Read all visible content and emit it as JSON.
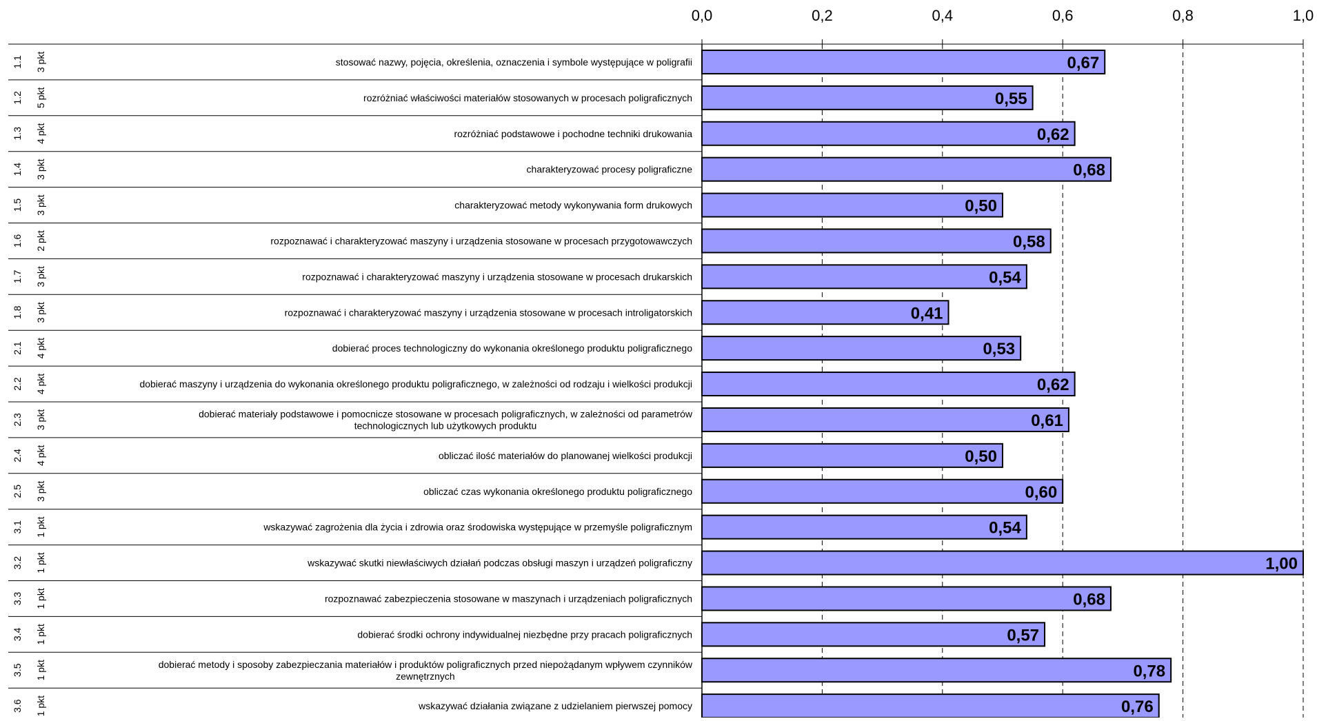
{
  "chart_data": {
    "type": "bar",
    "orientation": "horizontal",
    "title": "",
    "xlabel": "",
    "ylabel": "",
    "xlim": [
      0,
      1
    ],
    "ticks": [
      0,
      0.2,
      0.4,
      0.6,
      0.8,
      1.0
    ],
    "tick_labels": [
      "0,0",
      "0,2",
      "0,4",
      "0,6",
      "0,8",
      "1,0"
    ],
    "tick_position": "top",
    "grid": "vertical-dashed",
    "legend": "none",
    "bar_color": "#9999ff",
    "bar_edge_color": "#000000",
    "categories": [
      {
        "code": "1.1",
        "points": "3 pkt",
        "label": [
          "stosować nazwy, pojęcia, określenia, oznaczenia i symbole występujące w poligrafii"
        ],
        "value": 0.67,
        "value_label": "0,67"
      },
      {
        "code": "1.2",
        "points": "5 pkt",
        "label": [
          "rozróżniać właściwości materiałów stosowanych w procesach poligraficznych"
        ],
        "value": 0.55,
        "value_label": "0,55"
      },
      {
        "code": "1.3",
        "points": "4 pkt",
        "label": [
          "rozróżniać podstawowe i pochodne techniki drukowania"
        ],
        "value": 0.62,
        "value_label": "0,62"
      },
      {
        "code": "1.4",
        "points": "3 pkt",
        "label": [
          "charakteryzować procesy poligraficzne"
        ],
        "value": 0.68,
        "value_label": "0,68"
      },
      {
        "code": "1.5",
        "points": "3 pkt",
        "label": [
          "charakteryzować metody wykonywania form drukowych"
        ],
        "value": 0.5,
        "value_label": "0,50"
      },
      {
        "code": "1.6",
        "points": "2 pkt",
        "label": [
          "rozpoznawać i charakteryzować maszyny i urządzenia stosowane w procesach przygotowawczych"
        ],
        "value": 0.58,
        "value_label": "0,58"
      },
      {
        "code": "1.7",
        "points": "3 pkt",
        "label": [
          "rozpoznawać i charakteryzować maszyny i urządzenia stosowane w procesach drukarskich"
        ],
        "value": 0.54,
        "value_label": "0,54"
      },
      {
        "code": "1.8",
        "points": "3 pkt",
        "label": [
          "rozpoznawać i charakteryzować maszyny i urządzenia stosowane w procesach introligatorskich"
        ],
        "value": 0.41,
        "value_label": "0,41"
      },
      {
        "code": "2.1",
        "points": "4 pkt",
        "label": [
          "dobierać proces technologiczny do wykonania określonego produktu poligraficznego"
        ],
        "value": 0.53,
        "value_label": "0,53"
      },
      {
        "code": "2.2",
        "points": "4 pkt",
        "label": [
          "dobierać maszyny i urządzenia do wykonania określonego produktu poligraficznego, w zależności od rodzaju i wielkości produkcji"
        ],
        "value": 0.62,
        "value_label": "0,62"
      },
      {
        "code": "2.3",
        "points": "3 pkt",
        "label": [
          "dobierać materiały podstawowe i pomocnicze stosowane w procesach poligraficznych, w zależności od parametrów",
          "technologicznych lub użytkowych produktu"
        ],
        "value": 0.61,
        "value_label": "0,61"
      },
      {
        "code": "2.4",
        "points": "4 pkt",
        "label": [
          "obliczać ilość materiałów do planowanej wielkości produkcji"
        ],
        "value": 0.5,
        "value_label": "0,50"
      },
      {
        "code": "2.5",
        "points": "3 pkt",
        "label": [
          "obliczać czas wykonania określonego produktu poligraficznego"
        ],
        "value": 0.6,
        "value_label": "0,60"
      },
      {
        "code": "3.1",
        "points": "1 pkt",
        "label": [
          "wskazywać zagrożenia dla życia i zdrowia oraz środowiska występujące w  przemyśle poligraficznym"
        ],
        "value": 0.54,
        "value_label": "0,54"
      },
      {
        "code": "3.2",
        "points": "1 pkt",
        "label": [
          "wskazywać skutki niewłaściwych działań podczas obsługi maszyn i urządzeń poligraficzny"
        ],
        "value": 1.0,
        "value_label": "1,00"
      },
      {
        "code": "3.3",
        "points": "1 pkt",
        "label": [
          "rozpoznawać zabezpieczenia stosowane w maszynach i urządzeniach poligraficznych"
        ],
        "value": 0.68,
        "value_label": "0,68"
      },
      {
        "code": "3.4",
        "points": "1 pkt",
        "label": [
          "dobierać środki ochrony indywidualnej niezbędne przy pracach poligraficznych"
        ],
        "value": 0.57,
        "value_label": "0,57"
      },
      {
        "code": "3.5",
        "points": "1 pkt",
        "label": [
          "dobierać metody i sposoby zabezpieczania materiałów i produktów poligraficznych przed niepożądanym wpływem czynników",
          "zewnętrznych"
        ],
        "value": 0.78,
        "value_label": "0,78"
      },
      {
        "code": "3.6",
        "points": "1 pkt",
        "label": [
          "wskazywać działania związane z udzielaniem pierwszej pomocy"
        ],
        "value": 0.76,
        "value_label": "0,76"
      }
    ]
  }
}
